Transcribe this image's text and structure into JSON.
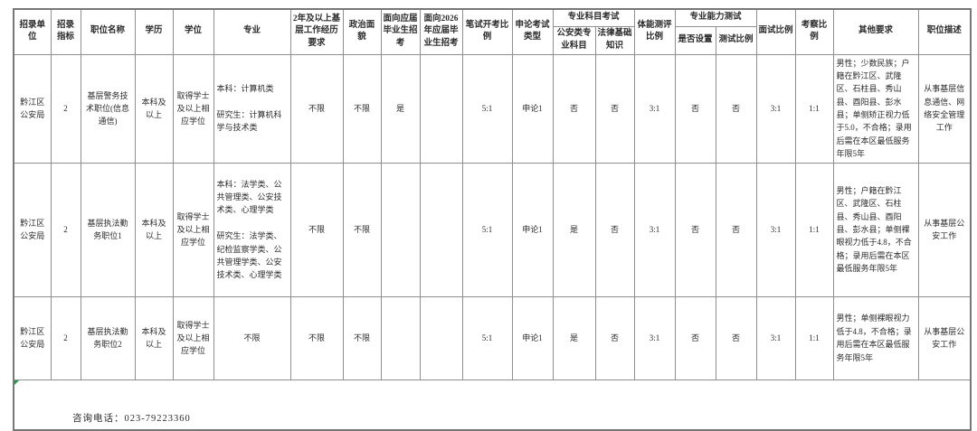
{
  "table": {
    "columns": [
      {
        "label": "招录单位"
      },
      {
        "label": "招录指标"
      },
      {
        "label": "职位名称"
      },
      {
        "label": "学历"
      },
      {
        "label": "学位"
      },
      {
        "label": "专业"
      },
      {
        "label": "2年及以上基层工作经历要求"
      },
      {
        "label": "政治面貌"
      },
      {
        "label": "面向应届毕业生招考"
      },
      {
        "label": "面向2026年应届毕业生招考"
      },
      {
        "label": "笔试开考比例"
      },
      {
        "label": "申论考试类型"
      },
      {
        "label": "专业科目考试",
        "children": [
          "公安类专业科目",
          "法律基础知识"
        ]
      },
      {
        "label": "体能测评比例"
      },
      {
        "label": "专业能力测试",
        "children": [
          "是否设置",
          "测试比例"
        ]
      },
      {
        "label": "面试比例"
      },
      {
        "label": "考察比例"
      },
      {
        "label": "其他要求"
      },
      {
        "label": "职位描述"
      }
    ],
    "rows": [
      [
        "黔江区公安局",
        "2",
        "基层警务技术职位(信息通信)",
        "本科及以上",
        "取得学士及以上相应学位",
        "本科：计算机类\n\n研究生：计算机科学与技术类",
        "不限",
        "不限",
        "是",
        "",
        "5:1",
        "申论1",
        "否",
        "否",
        "3:1",
        "否",
        "否",
        "3:1",
        "1:1",
        "男性；少数民族；户籍在黔江区、武隆区、石柱县、秀山县、酉阳县、彭水县；单侧矫正视力低于5.0，不合格；录用后需在本区最低服务年限5年",
        "从事基层信息通信、网络安全管理工作"
      ],
      [
        "黔江区公安局",
        "2",
        "基层执法勤务职位1",
        "本科及以上",
        "取得学士及以上相应学位",
        "本科：法学类、公共管理类、公安技术类、心理学类\n\n研究生：法学类、纪检监察学类、公共管理学类、公安技术类、心理学类",
        "不限",
        "不限",
        "",
        "",
        "5:1",
        "申论1",
        "是",
        "否",
        "3:1",
        "否",
        "否",
        "3:1",
        "1:1",
        "男性；户籍在黔江区、武隆区、石柱县、秀山县、酉阳县、彭水县；单侧裸眼视力低于4.8，不合格；录用后需在本区最低服务年限5年",
        "从事基层公安工作"
      ],
      [
        "黔江区公安局",
        "2",
        "基层执法勤务职位2",
        "本科及以上",
        "取得学士及以上相应学位",
        "不限",
        "不限",
        "不限",
        "",
        "",
        "5:1",
        "申论1",
        "是",
        "否",
        "3:1",
        "否",
        "否",
        "3:1",
        "1:1",
        "男性；单侧裸眼视力低于4.8，不合格；录用后需在本区最低服务年限5年",
        "从事基层公安工作"
      ]
    ],
    "footer": {
      "label": "咨询电话：023-79223360"
    }
  }
}
